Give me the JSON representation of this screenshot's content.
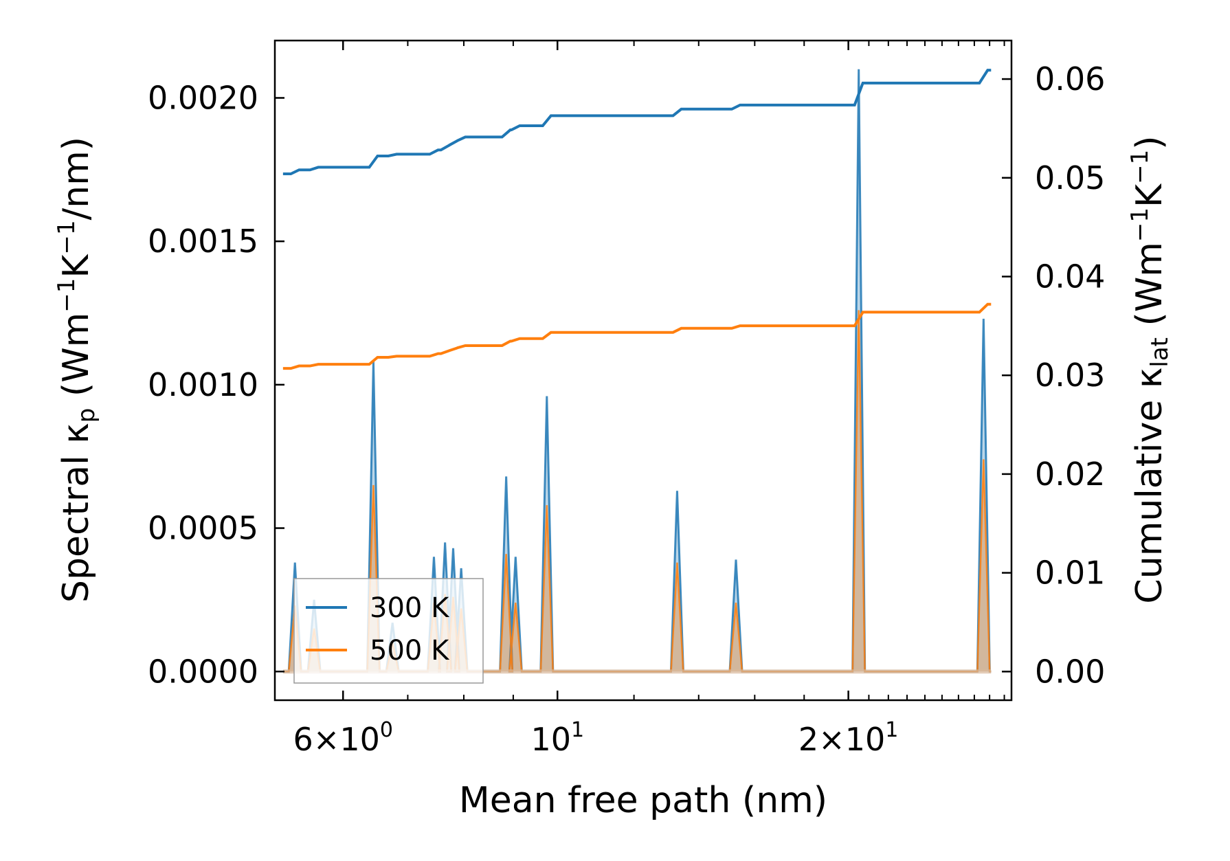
{
  "chart_data": {
    "type": "line",
    "xlabel": "Mean free path (nm)",
    "ylabel_left": {
      "main": "Spectral κ",
      "sub": "p",
      "units_open": " (Wm",
      "exp1": "−1",
      "mid": "K",
      "exp2": "−1",
      "units_close": "/nm)"
    },
    "ylabel_right": {
      "main": "Cumulative κ",
      "sub": "lat",
      "units_open": " (Wm",
      "exp1": "−1",
      "mid": "K",
      "exp2": "−1",
      "units_close": ")"
    },
    "x_scale": "log",
    "xlim": [
      5.1,
      29.5
    ],
    "x_ticks": [
      {
        "value": 6,
        "mantissa": "6",
        "exponent": "0"
      },
      {
        "value": 10,
        "mantissa": "",
        "exponent": "1"
      },
      {
        "value": 20,
        "mantissa": "2",
        "exponent": "1"
      }
    ],
    "ylim_left": [
      -0.0001,
      0.0022
    ],
    "y_ticks_left": [
      {
        "value": 0.0,
        "label": "0.0000"
      },
      {
        "value": 0.0005,
        "label": "0.0005"
      },
      {
        "value": 0.001,
        "label": "0.0010"
      },
      {
        "value": 0.0015,
        "label": "0.0015"
      },
      {
        "value": 0.002,
        "label": "0.0020"
      }
    ],
    "ylim_right": [
      -0.0029,
      0.0639
    ],
    "y_ticks_right": [
      {
        "value": 0.0,
        "label": "0.00"
      },
      {
        "value": 0.01,
        "label": "0.01"
      },
      {
        "value": 0.02,
        "label": "0.02"
      },
      {
        "value": 0.03,
        "label": "0.03"
      },
      {
        "value": 0.04,
        "label": "0.04"
      },
      {
        "value": 0.05,
        "label": "0.05"
      },
      {
        "value": 0.06,
        "label": "0.06"
      }
    ],
    "spectral_peaks": {
      "x": [
        5.35,
        5.6,
        6.45,
        6.75,
        7.45,
        7.65,
        7.8,
        7.95,
        8.85,
        9.05,
        9.75,
        13.3,
        15.3,
        20.5,
        27.6
      ],
      "series": [
        {
          "name": "300 K",
          "color": "#1f77b4",
          "values": [
            0.00038,
            0.00025,
            0.00108,
            0.00017,
            0.0004,
            0.00045,
            0.00043,
            0.00036,
            0.00068,
            0.0004,
            0.00096,
            0.00063,
            0.00039,
            0.0021,
            0.00123
          ]
        },
        {
          "name": "500 K",
          "color": "#ff7f0e",
          "values": [
            0.00023,
            0.00015,
            0.00065,
            0.0001,
            0.00024,
            0.00027,
            0.00026,
            0.00022,
            0.00041,
            0.00024,
            0.00058,
            0.00038,
            0.00024,
            0.00126,
            0.00074
          ]
        }
      ]
    },
    "cumulative": {
      "x_range": [
        5.2,
        28.1
      ],
      "series": [
        {
          "name": "300 K",
          "color": "#1f77b4",
          "start_value": 0.0504,
          "end_value": 0.0609
        },
        {
          "name": "500 K",
          "color": "#ff7f0e",
          "start_value": 0.0307,
          "end_value": 0.0372
        }
      ]
    },
    "legend": {
      "position": "lower-left",
      "entries": [
        {
          "label": "300 K",
          "color": "#1f77b4"
        },
        {
          "label": "500 K",
          "color": "#ff7f0e"
        }
      ]
    }
  }
}
